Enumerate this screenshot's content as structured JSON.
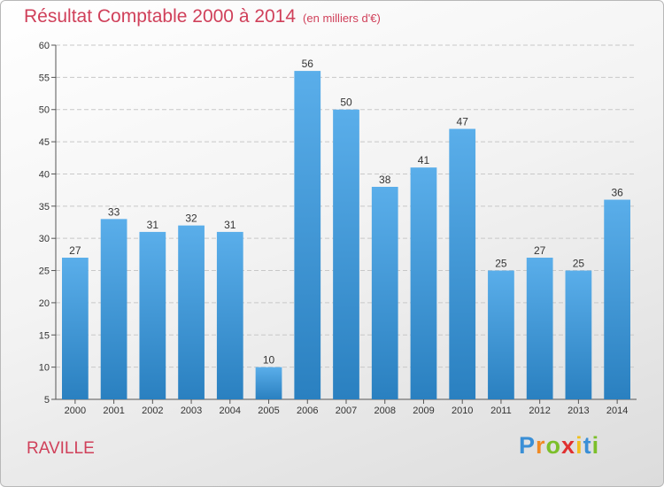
{
  "chart_data": {
    "type": "bar",
    "title": "Résultat Comptable 2000 à 2014",
    "unit_label": "(en milliers d'€)",
    "categories": [
      "2000",
      "2001",
      "2002",
      "2003",
      "2004",
      "2005",
      "2006",
      "2007",
      "2008",
      "2009",
      "2010",
      "2011",
      "2012",
      "2013",
      "2014"
    ],
    "values": [
      27,
      33,
      31,
      32,
      31,
      10,
      56,
      50,
      38,
      41,
      47,
      25,
      27,
      25,
      36
    ],
    "ylim": [
      5,
      60
    ],
    "yticks": [
      5,
      10,
      15,
      20,
      25,
      30,
      35,
      40,
      45,
      50,
      55,
      60
    ],
    "xlabel": "",
    "ylabel": "",
    "grid": true,
    "bar_color_top": "#5aaeea",
    "bar_color_bottom": "#2a80c0"
  },
  "commune": "RAVILLE",
  "logo": {
    "letters": [
      "P",
      "r",
      "o",
      "x",
      "i",
      "t",
      "i"
    ],
    "colors": [
      "#3a8fd6",
      "#f08a24",
      "#7cbf2a",
      "#e03030",
      "#f0c020",
      "#3a8fd6",
      "#7cbf2a"
    ]
  },
  "colors": {
    "title": "#d0405a"
  }
}
